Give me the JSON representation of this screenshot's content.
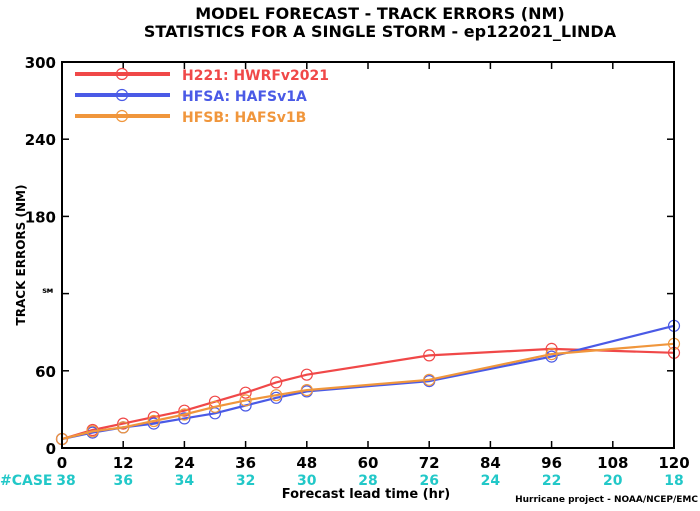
{
  "chart_data": {
    "type": "line",
    "title": "MODEL FORECAST - TRACK ERRORS (NM)",
    "subtitle": "STATISTICS FOR A SINGLE STORM - ep122021_LINDA",
    "xlabel": "Forecast lead time (hr)",
    "ylabel": "TRACK ERRORS (NM)",
    "xlim": [
      0,
      120
    ],
    "ylim": [
      0,
      300
    ],
    "x_ticks": [
      0,
      12,
      24,
      36,
      48,
      60,
      72,
      84,
      96,
      108,
      120
    ],
    "y_ticks": [
      0,
      60,
      120,
      180,
      240,
      300
    ],
    "x_tick_labels": [
      "0",
      "12",
      "24",
      "36",
      "48",
      "60",
      "72",
      "84",
      "96",
      "108",
      "120"
    ],
    "y_tick_labels": [
      "0",
      "60",
      "℠",
      "180",
      "240",
      "300"
    ],
    "grid": false,
    "legend_position": "top-left",
    "case_label": "#CASE",
    "case_counts": [
      "38",
      "36",
      "34",
      "32",
      "30",
      "28",
      "26",
      "24",
      "22",
      "20",
      "18"
    ],
    "case_color": "#22c8c8",
    "credit": "Hurricane project - NOAA/NCEP/EMC",
    "series": [
      {
        "name": "H221: HWRFv2021",
        "color": "#f04848",
        "x": [
          0,
          6,
          12,
          18,
          24,
          30,
          36,
          42,
          48,
          72,
          96,
          120
        ],
        "y": [
          7,
          14,
          19,
          24,
          29,
          36,
          43,
          51,
          57,
          72,
          77,
          74
        ]
      },
      {
        "name": "HFSA: HAFSv1A",
        "color": "#4a5ae6",
        "x": [
          0,
          6,
          12,
          18,
          24,
          30,
          36,
          42,
          48,
          72,
          96,
          120
        ],
        "y": [
          7,
          12,
          16,
          19,
          23,
          27,
          33,
          39,
          44,
          52,
          71,
          95
        ]
      },
      {
        "name": "HFSB: HAFSv1B",
        "color": "#f0963c",
        "x": [
          0,
          6,
          12,
          18,
          24,
          30,
          36,
          42,
          48,
          72,
          96,
          120
        ],
        "y": [
          7,
          13,
          16,
          21,
          26,
          32,
          37,
          41,
          45,
          53,
          73,
          81
        ]
      }
    ]
  }
}
